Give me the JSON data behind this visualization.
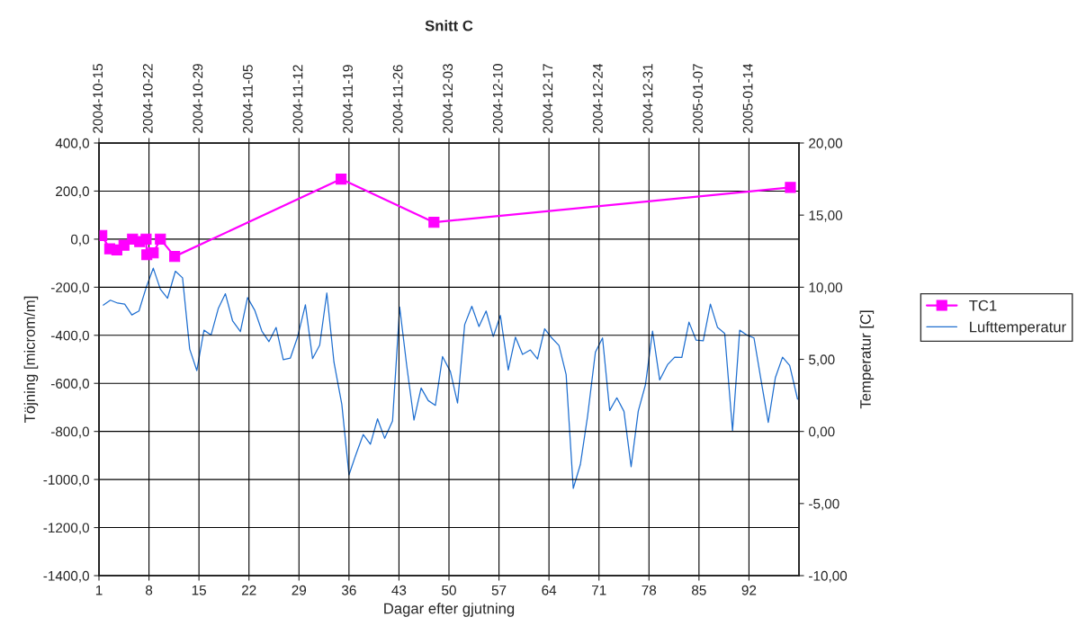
{
  "chart_data": {
    "type": "line",
    "title": "Snitt C",
    "xlabel": "Dagar efter gjutning",
    "ylabel": "Töjning [microm/m]",
    "y2label": "Temperatur [C]",
    "xlim": [
      1,
      99
    ],
    "xticks": [
      1,
      8,
      15,
      22,
      29,
      36,
      43,
      50,
      57,
      64,
      71,
      78,
      85,
      92
    ],
    "x2lim": [
      "2004-10-15",
      "2005-01-21"
    ],
    "x2ticks": [
      "2004-10-15",
      "2004-10-22",
      "2004-10-29",
      "2004-11-05",
      "2004-11-12",
      "2004-11-19",
      "2004-11-26",
      "2004-12-03",
      "2004-12-10",
      "2004-12-17",
      "2004-12-24",
      "2004-12-31",
      "2005-01-07",
      "2005-01-14"
    ],
    "ylim": [
      -1400,
      400
    ],
    "yticks": [
      {
        "value": -1400,
        "label": "-1400,0"
      },
      {
        "value": -1200,
        "label": "-1200,0"
      },
      {
        "value": -1000,
        "label": "-1000,0"
      },
      {
        "value": -800,
        "label": "-800,0"
      },
      {
        "value": -600,
        "label": "-600,0"
      },
      {
        "value": -400,
        "label": "-400,0"
      },
      {
        "value": -200,
        "label": "-200,0"
      },
      {
        "value": 0,
        "label": "0,0"
      },
      {
        "value": 200,
        "label": "200,0"
      },
      {
        "value": 400,
        "label": "400,0"
      }
    ],
    "y2lim": [
      -10,
      20
    ],
    "y2ticks": [
      {
        "value": -10,
        "label": "-10,00"
      },
      {
        "value": -5,
        "label": "-5,00"
      },
      {
        "value": 0,
        "label": "0,00"
      },
      {
        "value": 5,
        "label": "5,00"
      },
      {
        "value": 10,
        "label": "10,00"
      },
      {
        "value": 15,
        "label": "15,00"
      },
      {
        "value": 20,
        "label": "20,00"
      }
    ],
    "grid": true,
    "legend": "right",
    "series": [
      {
        "name": "TC1",
        "color": "#ff00ff",
        "marker": "square",
        "x": [
          1.4,
          2.5,
          3.5,
          4.5,
          5.7,
          6.7,
          7.6,
          7.7,
          8.6,
          9.6,
          11.6,
          34.9,
          47.9,
          97.8
        ],
        "values": [
          15,
          -40,
          -45,
          -25,
          0,
          -10,
          0,
          -65,
          -57,
          0,
          -72,
          250,
          70,
          215
        ]
      },
      {
        "name": "Lufttemperatur",
        "color": "#1f6fd0",
        "axis": "y2",
        "marker": "none",
        "x": [
          1.6,
          2.6,
          3.6,
          4.6,
          5.6,
          6.6,
          7.6,
          8.6,
          9.6,
          10.6,
          11.7,
          12.7,
          13.7,
          14.7,
          15.7,
          16.7,
          17.7,
          18.7,
          19.7,
          20.8,
          21.8,
          22.8,
          23.8,
          24.8,
          25.8,
          26.8,
          27.8,
          28.8,
          29.9,
          30.9,
          31.9,
          32.9,
          33.9,
          35.0,
          36.0,
          37.0,
          38.0,
          39.0,
          40.0,
          41.0,
          42.1,
          43.1,
          44.1,
          45.1,
          46.1,
          47.1,
          48.1,
          49.1,
          50.2,
          51.2,
          52.2,
          53.2,
          54.2,
          55.2,
          56.2,
          57.2,
          58.3,
          59.3,
          60.3,
          61.4,
          62.4,
          63.4,
          64.4,
          65.4,
          66.4,
          67.4,
          68.4,
          69.4,
          70.5,
          71.5,
          72.5,
          73.5,
          74.5,
          75.5,
          76.5,
          77.5,
          78.5,
          79.5,
          80.6,
          81.6,
          82.6,
          83.6,
          84.6,
          85.6,
          86.6,
          87.6,
          88.6,
          89.7,
          90.7,
          91.7,
          92.7,
          93.7,
          94.7,
          95.7,
          96.7,
          97.7,
          98.8
        ],
        "values": [
          8.76,
          9.1,
          8.9,
          8.83,
          8.08,
          8.35,
          9.97,
          11.32,
          9.86,
          9.24,
          11.11,
          10.65,
          5.71,
          4.22,
          7.02,
          6.69,
          8.52,
          9.55,
          7.68,
          6.92,
          9.28,
          8.41,
          6.96,
          6.23,
          7.21,
          4.98,
          5.09,
          6.54,
          8.78,
          5.05,
          5.98,
          9.6,
          4.8,
          1.87,
          -3.01,
          -1.56,
          -0.21,
          -0.89,
          0.87,
          -0.48,
          0.73,
          8.62,
          4.5,
          0.79,
          3.01,
          2.14,
          1.81,
          5.19,
          4.15,
          1.97,
          7.41,
          8.68,
          7.27,
          8.35,
          6.58,
          8.04,
          4.26,
          6.54,
          5.34,
          5.65,
          5.03,
          7.12,
          6.48,
          5.96,
          3.95,
          -3.95,
          -2.28,
          1.04,
          5.5,
          6.48,
          1.45,
          2.33,
          1.39,
          -2.45,
          1.41,
          3.22,
          6.96,
          3.57,
          4.63,
          5.15,
          5.13,
          7.58,
          6.33,
          6.29,
          8.83,
          7.21,
          6.79,
          0.04,
          7.02,
          6.69,
          6.48,
          3.53,
          0.62,
          3.74,
          5.15,
          4.57,
          2.24
        ]
      }
    ]
  }
}
